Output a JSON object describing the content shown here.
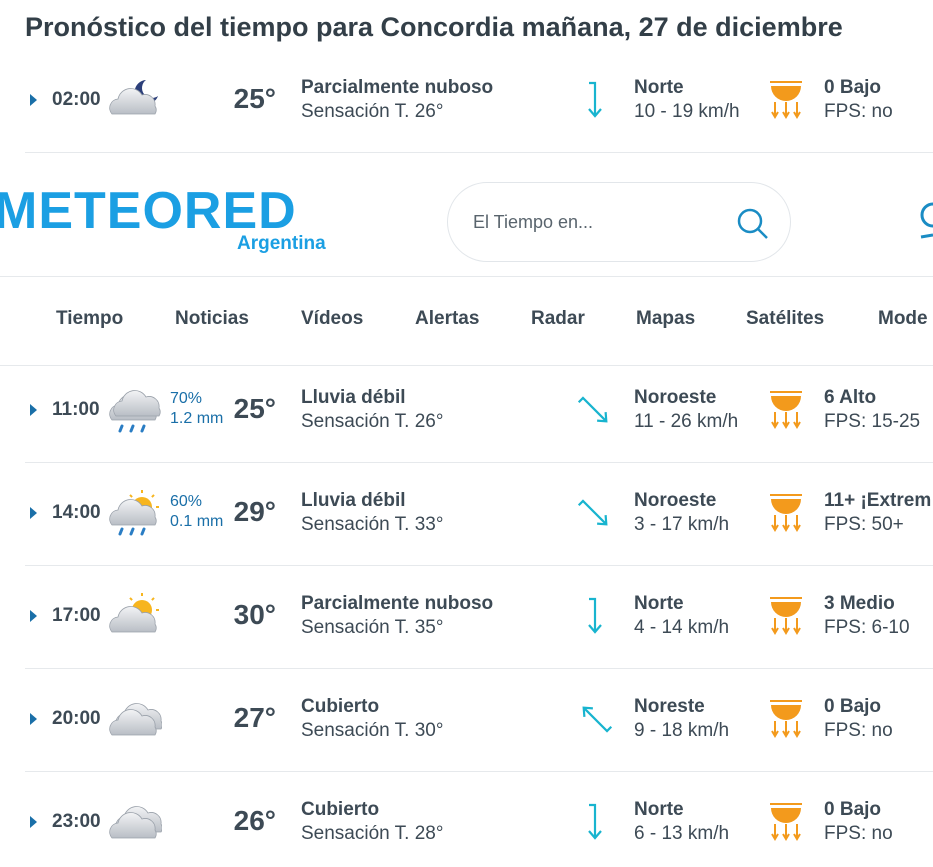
{
  "title": "Pronóstico del tiempo para Concordia mañana, 27 de diciembre",
  "header": {
    "logo": "METEORED",
    "country": "Argentina",
    "search_placeholder": "El Tiempo en..."
  },
  "nav": [
    "Tiempo",
    "Noticias",
    "Vídeos",
    "Alertas",
    "Radar",
    "Mapas",
    "Satélites",
    "Mode"
  ],
  "rows": [
    {
      "time": "02:00",
      "temp": "25°",
      "condition": "Parcialmente nuboso",
      "feels_like": "Sensación T. 26°",
      "wind_dir": "Norte",
      "wind_speed": "10 - 19 km/h",
      "uv": "0 Bajo",
      "fps": "FPS: no"
    },
    {
      "time": "11:00",
      "rain_prob": "70%",
      "rain_amount": "1.2 mm",
      "temp": "25°",
      "condition": "Lluvia débil",
      "feels_like": "Sensación T. 26°",
      "wind_dir": "Noroeste",
      "wind_speed": "11 - 26 km/h",
      "uv": "6 Alto",
      "fps": "FPS: 15-25"
    },
    {
      "time": "14:00",
      "rain_prob": "60%",
      "rain_amount": "0.1 mm",
      "temp": "29°",
      "condition": "Lluvia débil",
      "feels_like": "Sensación T. 33°",
      "wind_dir": "Noroeste",
      "wind_speed": "3 - 17 km/h",
      "uv": "11+ ¡Extrem",
      "fps": "FPS: 50+"
    },
    {
      "time": "17:00",
      "temp": "30°",
      "condition": "Parcialmente nuboso",
      "feels_like": "Sensación T. 35°",
      "wind_dir": "Norte",
      "wind_speed": "4 - 14 km/h",
      "uv": "3 Medio",
      "fps": "FPS: 6-10"
    },
    {
      "time": "20:00",
      "temp": "27°",
      "condition": "Cubierto",
      "feels_like": "Sensación T. 30°",
      "wind_dir": "Noreste",
      "wind_speed": "9 - 18 km/h",
      "uv": "0 Bajo",
      "fps": "FPS: no"
    },
    {
      "time": "23:00",
      "temp": "26°",
      "condition": "Cubierto",
      "feels_like": "Sensación T. 28°",
      "wind_dir": "Norte",
      "wind_speed": "6 - 13 km/h",
      "uv": "0 Bajo",
      "fps": "FPS: no"
    }
  ]
}
